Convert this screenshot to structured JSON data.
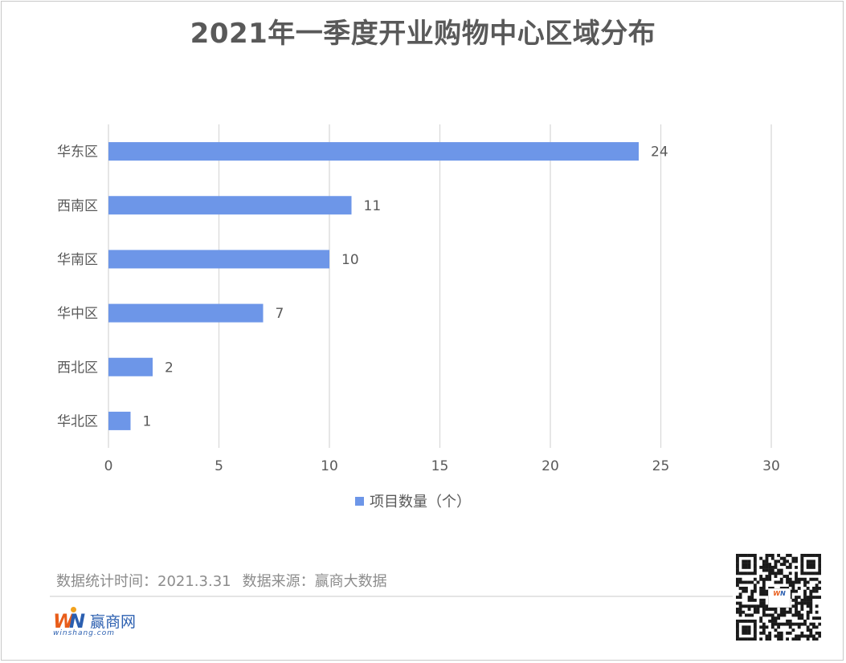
{
  "chart_data": {
    "type": "bar",
    "orientation": "horizontal",
    "title": "2021年一季度开业购物中心区域分布",
    "categories": [
      "华东区",
      "西南区",
      "华南区",
      "华中区",
      "西北区",
      "华北区"
    ],
    "series": [
      {
        "name": "项目数量（个）",
        "values": [
          24,
          11,
          10,
          7,
          2,
          1
        ],
        "color": "#6d96e8"
      }
    ],
    "xlim": [
      0,
      30
    ],
    "xticks": [
      0,
      5,
      10,
      15,
      20,
      25,
      30
    ],
    "grid": true,
    "legend_position": "bottom",
    "data_labels": true
  },
  "footer": {
    "source_stat": "数据统计时间：2021.3.31",
    "source_origin": "数据来源：赢商大数据"
  },
  "logo": {
    "mark_w": "W",
    "mark_n": "N",
    "name": "赢商网",
    "url": "winshang.com"
  }
}
